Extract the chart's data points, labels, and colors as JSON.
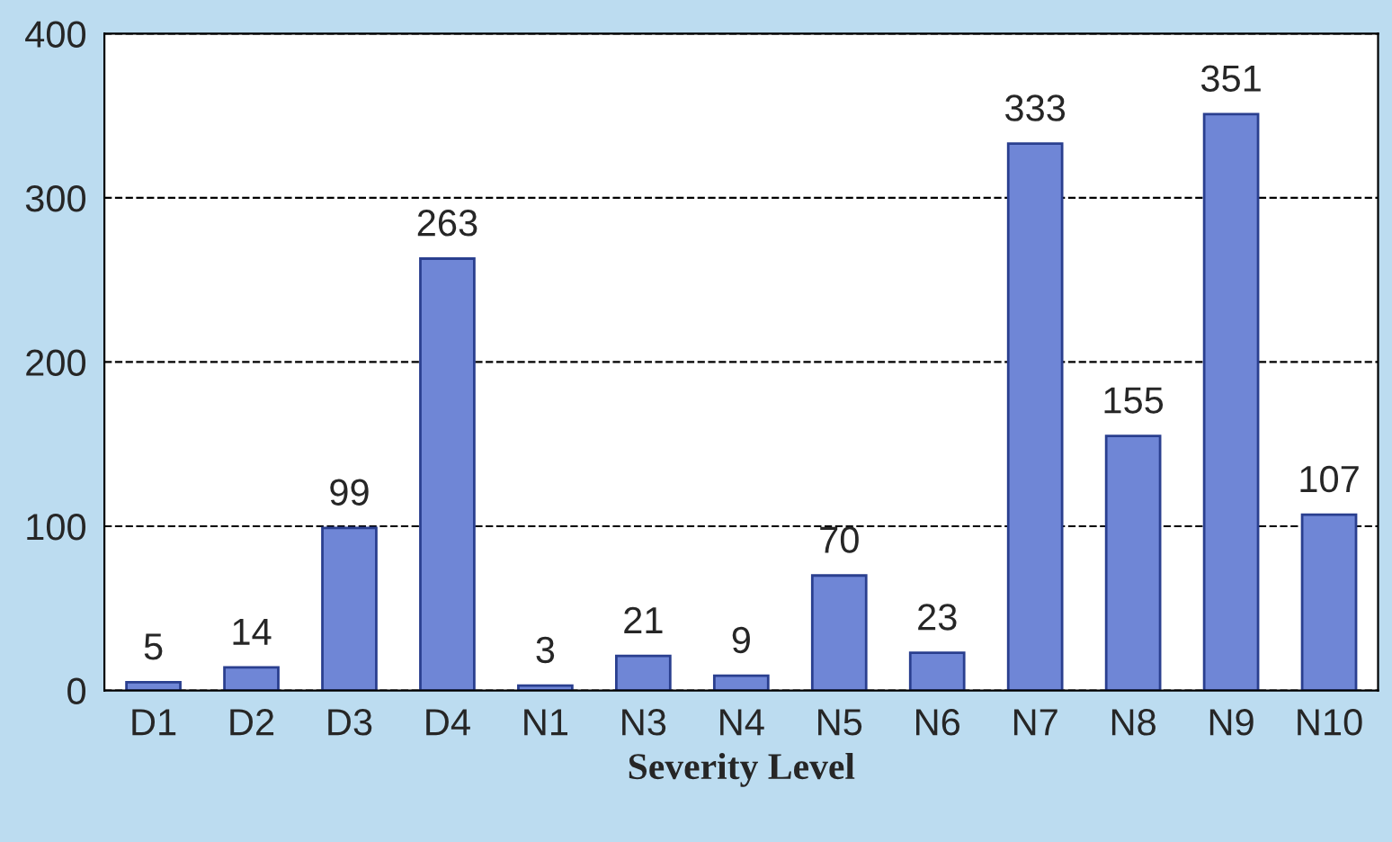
{
  "chart_data": {
    "type": "bar",
    "xlabel": "Severity Level",
    "categories": [
      "D1",
      "D2",
      "D3",
      "D4",
      "N1",
      "N3",
      "N4",
      "N5",
      "N6",
      "N7",
      "N8",
      "N9",
      "N10"
    ],
    "values": [
      5,
      14,
      99,
      263,
      3,
      21,
      9,
      70,
      23,
      333,
      155,
      351,
      107
    ],
    "color": "#6f86d6",
    "ylim": [
      0,
      400
    ],
    "yticks": [
      0,
      100,
      200,
      300,
      400
    ],
    "grid": "y",
    "data_labels": true
  }
}
